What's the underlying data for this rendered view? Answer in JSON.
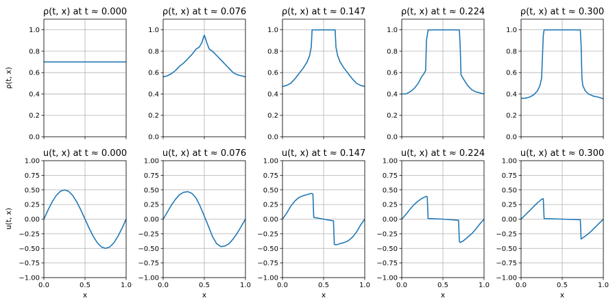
{
  "figure": {
    "x_label": "x",
    "rho_label": "ρ(t, x)",
    "u_label": "u(t, x)"
  },
  "chart_data": [
    {
      "type": "line",
      "title": "ρ(t, x) at t ≈ 0.000",
      "xlabel": "",
      "ylabel": "ρ(t, x)",
      "xlim": [
        0,
        1
      ],
      "ylim": [
        0,
        1.1
      ],
      "xticks": [
        0,
        0.5,
        1
      ],
      "yticks": [
        0,
        0.2,
        0.4,
        0.6,
        0.8,
        1.0
      ],
      "grid": true,
      "color": "#1f77b4",
      "x": [
        0,
        0.25,
        0.5,
        0.75,
        1.0
      ],
      "y": [
        0.7,
        0.7,
        0.7,
        0.7,
        0.7
      ]
    },
    {
      "type": "line",
      "title": "ρ(t, x) at t ≈ 0.076",
      "xlabel": "",
      "ylabel": "",
      "xlim": [
        0,
        1
      ],
      "ylim": [
        0,
        1.1
      ],
      "xticks": [
        0,
        0.5,
        1
      ],
      "yticks": [
        0,
        0.2,
        0.4,
        0.6,
        0.8,
        1.0
      ],
      "grid": true,
      "color": "#1f77b4",
      "x": [
        0,
        0.05,
        0.1,
        0.15,
        0.2,
        0.25,
        0.3,
        0.35,
        0.4,
        0.44,
        0.47,
        0.49,
        0.5,
        0.51,
        0.53,
        0.56,
        0.6,
        0.65,
        0.7,
        0.75,
        0.8,
        0.85,
        0.9,
        0.95,
        1.0
      ],
      "y": [
        0.56,
        0.57,
        0.59,
        0.62,
        0.66,
        0.69,
        0.73,
        0.77,
        0.82,
        0.84,
        0.88,
        0.93,
        0.95,
        0.93,
        0.88,
        0.82,
        0.8,
        0.76,
        0.72,
        0.68,
        0.64,
        0.6,
        0.58,
        0.57,
        0.56
      ]
    },
    {
      "type": "line",
      "title": "ρ(t, x) at t ≈ 0.147",
      "xlabel": "",
      "ylabel": "",
      "xlim": [
        0,
        1
      ],
      "ylim": [
        0,
        1.1
      ],
      "xticks": [
        0,
        0.5,
        1
      ],
      "yticks": [
        0,
        0.2,
        0.4,
        0.6,
        0.8,
        1.0
      ],
      "grid": true,
      "color": "#1f77b4",
      "x": [
        0,
        0.05,
        0.1,
        0.15,
        0.2,
        0.25,
        0.3,
        0.33,
        0.35,
        0.36,
        0.38,
        0.4,
        0.5,
        0.6,
        0.62,
        0.64,
        0.65,
        0.67,
        0.7,
        0.75,
        0.8,
        0.85,
        0.9,
        0.95,
        1.0
      ],
      "y": [
        0.47,
        0.48,
        0.5,
        0.54,
        0.59,
        0.64,
        0.7,
        0.76,
        0.84,
        1.0,
        1.0,
        1.0,
        1.0,
        1.0,
        1.0,
        1.0,
        0.84,
        0.76,
        0.7,
        0.64,
        0.59,
        0.54,
        0.5,
        0.48,
        0.47
      ]
    },
    {
      "type": "line",
      "title": "ρ(t, x) at t ≈ 0.224",
      "xlabel": "",
      "ylabel": "",
      "xlim": [
        0,
        1
      ],
      "ylim": [
        0,
        1.1
      ],
      "xticks": [
        0,
        0.5,
        1
      ],
      "yticks": [
        0,
        0.2,
        0.4,
        0.6,
        0.8,
        1.0
      ],
      "grid": true,
      "color": "#1f77b4",
      "x": [
        0,
        0.05,
        0.1,
        0.15,
        0.2,
        0.24,
        0.27,
        0.29,
        0.3,
        0.32,
        0.4,
        0.5,
        0.6,
        0.67,
        0.7,
        0.71,
        0.72,
        0.75,
        0.8,
        0.85,
        0.9,
        0.95,
        1.0
      ],
      "y": [
        0.4,
        0.4,
        0.42,
        0.45,
        0.5,
        0.56,
        0.59,
        0.62,
        0.9,
        1.0,
        1.0,
        1.0,
        1.0,
        1.0,
        1.0,
        0.85,
        0.58,
        0.54,
        0.48,
        0.44,
        0.42,
        0.41,
        0.4
      ]
    },
    {
      "type": "line",
      "title": "ρ(t, x) at t ≈ 0.300",
      "xlabel": "",
      "ylabel": "",
      "xlim": [
        0,
        1
      ],
      "ylim": [
        0,
        1.1
      ],
      "xticks": [
        0,
        0.5,
        1
      ],
      "yticks": [
        0,
        0.2,
        0.4,
        0.6,
        0.8,
        1.0
      ],
      "grid": true,
      "color": "#1f77b4",
      "x": [
        0,
        0.05,
        0.1,
        0.15,
        0.2,
        0.23,
        0.25,
        0.26,
        0.27,
        0.28,
        0.3,
        0.4,
        0.5,
        0.6,
        0.7,
        0.72,
        0.73,
        0.74,
        0.75,
        0.78,
        0.82,
        0.88,
        0.94,
        1.0
      ],
      "y": [
        0.36,
        0.36,
        0.37,
        0.39,
        0.43,
        0.48,
        0.55,
        0.75,
        0.95,
        1.0,
        1.0,
        1.0,
        1.0,
        1.0,
        1.0,
        1.0,
        0.85,
        0.55,
        0.48,
        0.43,
        0.4,
        0.38,
        0.37,
        0.355
      ]
    },
    {
      "type": "line",
      "title": "u(t, x) at t ≈ 0.000",
      "xlabel": "x",
      "ylabel": "u(t, x)",
      "xlim": [
        0,
        1
      ],
      "ylim": [
        -1,
        1
      ],
      "xticks": [
        0.0,
        0.5,
        1.0
      ],
      "yticks": [
        -1.0,
        -0.75,
        -0.5,
        -0.25,
        0.0,
        0.25,
        0.5,
        0.75,
        1.0
      ],
      "grid": true,
      "color": "#1f77b4",
      "x": [
        0,
        0.05,
        0.1,
        0.15,
        0.2,
        0.25,
        0.3,
        0.35,
        0.4,
        0.45,
        0.5,
        0.55,
        0.6,
        0.65,
        0.7,
        0.75,
        0.8,
        0.85,
        0.9,
        0.95,
        1.0
      ],
      "y": [
        0.0,
        0.155,
        0.294,
        0.405,
        0.476,
        0.5,
        0.476,
        0.405,
        0.294,
        0.155,
        0.0,
        -0.155,
        -0.294,
        -0.405,
        -0.476,
        -0.5,
        -0.476,
        -0.405,
        -0.294,
        -0.155,
        0.0
      ]
    },
    {
      "type": "line",
      "title": "u(t, x) at t ≈ 0.076",
      "xlabel": "x",
      "ylabel": "",
      "xlim": [
        0,
        1
      ],
      "ylim": [
        -1,
        1
      ],
      "xticks": [
        0.0,
        0.5,
        1.0
      ],
      "yticks": [
        -1.0,
        -0.75,
        -0.5,
        -0.25,
        0.0,
        0.25,
        0.5,
        0.75,
        1.0
      ],
      "grid": true,
      "color": "#1f77b4",
      "x": [
        0,
        0.05,
        0.1,
        0.15,
        0.2,
        0.25,
        0.3,
        0.35,
        0.4,
        0.45,
        0.5,
        0.55,
        0.6,
        0.65,
        0.7,
        0.75,
        0.8,
        0.85,
        0.9,
        0.95,
        1.0
      ],
      "y": [
        0.0,
        0.12,
        0.24,
        0.34,
        0.42,
        0.46,
        0.47,
        0.44,
        0.36,
        0.22,
        0.05,
        -0.12,
        -0.3,
        -0.42,
        -0.47,
        -0.46,
        -0.42,
        -0.34,
        -0.24,
        -0.12,
        0.0
      ]
    },
    {
      "type": "line",
      "title": "u(t, x) at t ≈ 0.147",
      "xlabel": "x",
      "ylabel": "",
      "xlim": [
        0,
        1
      ],
      "ylim": [
        -1,
        1
      ],
      "xticks": [
        0.0,
        0.5,
        1.0
      ],
      "yticks": [
        -1.0,
        -0.75,
        -0.5,
        -0.25,
        0.0,
        0.25,
        0.5,
        0.75,
        1.0
      ],
      "grid": true,
      "color": "#1f77b4",
      "x": [
        0,
        0.05,
        0.1,
        0.15,
        0.2,
        0.25,
        0.3,
        0.35,
        0.37,
        0.38,
        0.5,
        0.62,
        0.63,
        0.65,
        0.7,
        0.75,
        0.8,
        0.85,
        0.9,
        0.95,
        1.0
      ],
      "y": [
        0.0,
        0.1,
        0.22,
        0.31,
        0.37,
        0.4,
        0.42,
        0.44,
        0.43,
        0.03,
        0.0,
        -0.03,
        -0.43,
        -0.44,
        -0.42,
        -0.4,
        -0.37,
        -0.31,
        -0.22,
        -0.1,
        0.0
      ]
    },
    {
      "type": "line",
      "title": "u(t, x) at t ≈ 0.224",
      "xlabel": "x",
      "ylabel": "",
      "xlim": [
        0,
        1
      ],
      "ylim": [
        -1,
        1
      ],
      "xticks": [
        0.0,
        0.5,
        1.0
      ],
      "yticks": [
        -1.0,
        -0.75,
        -0.5,
        -0.25,
        0.0,
        0.25,
        0.5,
        0.75,
        1.0
      ],
      "grid": true,
      "color": "#1f77b4",
      "x": [
        0,
        0.05,
        0.1,
        0.15,
        0.2,
        0.25,
        0.3,
        0.31,
        0.32,
        0.5,
        0.69,
        0.7,
        0.71,
        0.75,
        0.8,
        0.85,
        0.9,
        0.95,
        1.0
      ],
      "y": [
        0.0,
        0.08,
        0.17,
        0.25,
        0.31,
        0.36,
        0.39,
        0.38,
        0.01,
        0.0,
        -0.02,
        -0.38,
        -0.4,
        -0.37,
        -0.31,
        -0.25,
        -0.17,
        -0.08,
        0.0
      ]
    },
    {
      "type": "line",
      "title": "u(t, x) at t ≈ 0.300",
      "xlabel": "x",
      "ylabel": "",
      "xlim": [
        0,
        1
      ],
      "ylim": [
        -1,
        1
      ],
      "xticks": [
        0.0,
        0.5,
        1.0
      ],
      "yticks": [
        -1.0,
        -0.75,
        -0.5,
        -0.25,
        0.0,
        0.25,
        0.5,
        0.75,
        1.0
      ],
      "grid": true,
      "color": "#1f77b4",
      "x": [
        0,
        0.05,
        0.1,
        0.15,
        0.2,
        0.25,
        0.27,
        0.28,
        0.5,
        0.72,
        0.73,
        0.75,
        0.8,
        0.85,
        0.9,
        0.95,
        1.0
      ],
      "y": [
        0.0,
        0.07,
        0.14,
        0.21,
        0.28,
        0.34,
        0.35,
        0.01,
        0.0,
        -0.01,
        -0.34,
        -0.32,
        -0.27,
        -0.21,
        -0.14,
        -0.07,
        0.0
      ]
    }
  ]
}
